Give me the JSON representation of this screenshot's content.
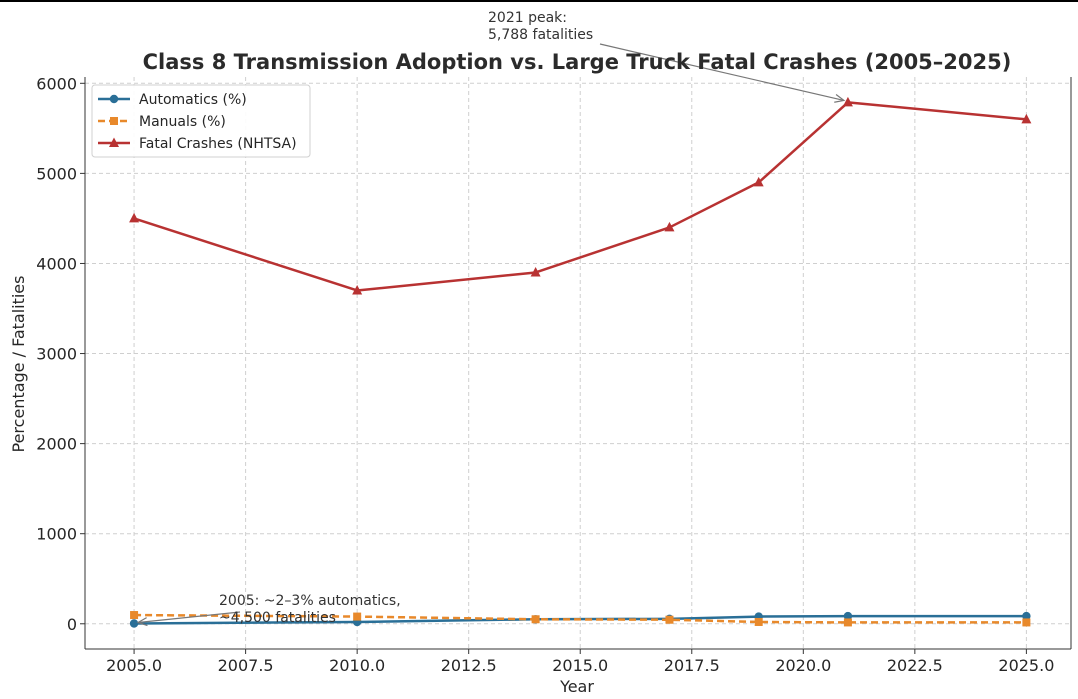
{
  "chart_data": {
    "type": "line",
    "title": "Class 8 Transmission Adoption vs. Large Truck Fatal Crashes (2005–2025)",
    "xlabel": "Year",
    "ylabel": "Percentage / Fatalities",
    "xlim": [
      2003.9,
      2026.0
    ],
    "ylim": [
      -280,
      6070
    ],
    "xticks": [
      2005.0,
      2007.5,
      2010.0,
      2012.5,
      2015.0,
      2017.5,
      2020.0,
      2022.5,
      2025.0
    ],
    "xtick_labels": [
      "2005.0",
      "2007.5",
      "2010.0",
      "2012.5",
      "2015.0",
      "2017.5",
      "2020.0",
      "2022.5",
      "2025.0"
    ],
    "yticks": [
      0,
      1000,
      2000,
      3000,
      4000,
      5000,
      6000
    ],
    "ytick_labels": [
      "0",
      "1000",
      "2000",
      "3000",
      "4000",
      "5000",
      "6000"
    ],
    "grid": true,
    "legend_position": "top-left",
    "x": [
      2005,
      2010,
      2014,
      2017,
      2019,
      2021,
      2025
    ],
    "series": [
      {
        "name": "Automatics (%)",
        "color": "#2a6f97",
        "marker": "circle",
        "dash": "solid",
        "values": [
          3,
          20,
          50,
          55,
          80,
          85,
          85
        ]
      },
      {
        "name": "Manuals (%)",
        "color": "#e8892b",
        "marker": "square",
        "dash": "dashed",
        "values": [
          97,
          80,
          50,
          45,
          20,
          15,
          15
        ]
      },
      {
        "name": "Fatal Crashes (NHTSA)",
        "color": "#b83232",
        "marker": "triangle",
        "dash": "solid",
        "values": [
          4500,
          3700,
          3900,
          4400,
          4900,
          5788,
          5600
        ]
      }
    ],
    "annotations": [
      {
        "id": "peak",
        "lines": [
          "2021 peak:",
          "5,788 fatalities"
        ],
        "point": [
          2021,
          5788
        ]
      },
      {
        "id": "start",
        "lines": [
          "2005: ~2–3% automatics,",
          "~4,500 fatalities"
        ],
        "point": [
          2005,
          3
        ]
      }
    ]
  }
}
